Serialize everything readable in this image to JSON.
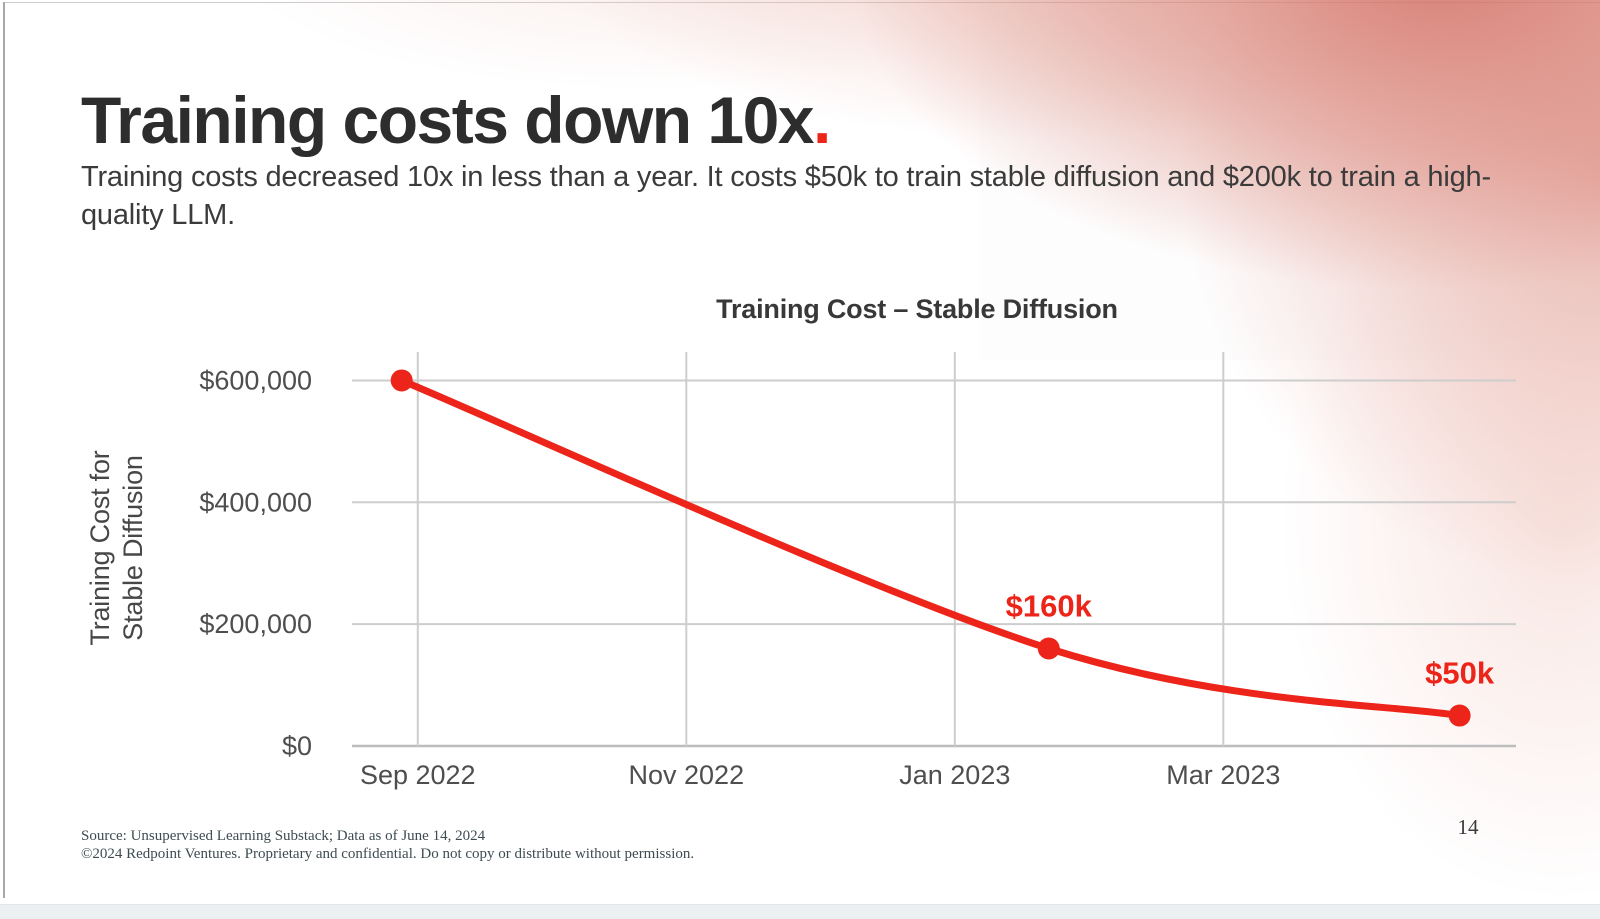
{
  "slide": {
    "title": {
      "text": "Training costs down 10x",
      "period": "."
    },
    "subtitle": "Training costs decreased 10x in less than a year. It costs $50k to train stable diffusion and $200k to train a high-quality LLM.",
    "footer": {
      "source_line": "Source: Unsupervised Learning Substack; Data as of June 14, 2024",
      "copyright_line": "©2024 Redpoint Ventures. Proprietary and confidential. Do not copy or distribute without permission."
    },
    "page_number": "14"
  },
  "colors": {
    "accent_red": "#ed2419",
    "title_text": "#2d2d2d",
    "body_text": "#3b3b3b",
    "axis_text": "#4e4e4e",
    "grid_line": "#cdcdcd",
    "axis_line": "#bdbdbd",
    "footer_text": "#3e4c52",
    "corner_glow": "#d0645a"
  },
  "chart_data": {
    "type": "line",
    "title": "Training Cost – Stable Diffusion",
    "ylabel_lines": [
      "Training Cost for",
      "Stable Diffusion"
    ],
    "xlabel": "",
    "grid": true,
    "legend": "none",
    "xlim_months": [
      -0.49,
      8.18
    ],
    "ylim": [
      0,
      650000
    ],
    "x_ticks": [
      {
        "month": 0,
        "label": "Sep 2022"
      },
      {
        "month": 2,
        "label": "Nov 2022"
      },
      {
        "month": 4,
        "label": "Jan 2023"
      },
      {
        "month": 6,
        "label": "Mar 2023"
      }
    ],
    "y_ticks": [
      {
        "value": 0,
        "label": "$0"
      },
      {
        "value": 200000,
        "label": "$200,000"
      },
      {
        "value": 400000,
        "label": "$400,000"
      },
      {
        "value": 600000,
        "label": "$600,000"
      }
    ],
    "series": [
      {
        "name": "Training Cost for Stable Diffusion",
        "color": "#ed2419",
        "points": [
          {
            "x_month": -0.12,
            "date_approx": "Aug 2022",
            "value": 600000,
            "label": ""
          },
          {
            "x_month": 4.7,
            "date_approx": "Jan 2023",
            "value": 160000,
            "label": "$160k"
          },
          {
            "x_month": 7.76,
            "date_approx": "Apr 2023",
            "value": 50000,
            "label": "$50k"
          }
        ]
      }
    ]
  }
}
